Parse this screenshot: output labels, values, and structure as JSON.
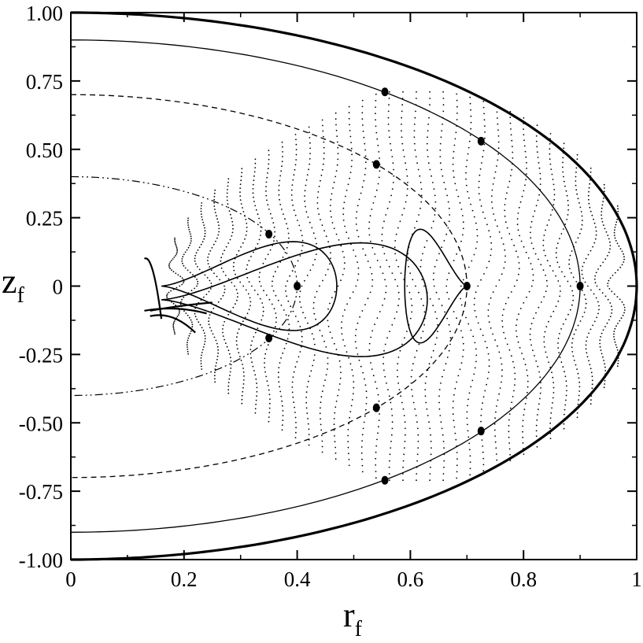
{
  "chart_data": {
    "type": "line",
    "xlabel": "r",
    "xlabel_subscript": "f",
    "ylabel": "z",
    "ylabel_subscript": "f",
    "xlim": [
      0,
      1
    ],
    "ylim": [
      -1,
      1
    ],
    "x_ticks": [
      0,
      0.2,
      0.4,
      0.6,
      0.8,
      1
    ],
    "x_tick_labels": [
      "0",
      "0.2",
      "0.4",
      "0.6",
      "0.8",
      "1"
    ],
    "y_ticks": [
      1,
      0.75,
      0.5,
      0.25,
      0,
      -0.25,
      -0.5,
      -0.75,
      -1
    ],
    "y_tick_labels": [
      "1.00",
      "0.75",
      "0.50",
      "0.25",
      "0",
      "-0.25",
      "-0.50",
      "-0.75",
      "-1.00"
    ],
    "grid": false,
    "legend": "none",
    "boundary_curves": [
      {
        "style": "thick-solid",
        "a": 1.0,
        "b": 1.0
      },
      {
        "style": "solid",
        "a": 0.9,
        "b": 0.9
      },
      {
        "style": "dashed",
        "a": 0.7,
        "b": 0.7
      },
      {
        "style": "dash-dot-dot",
        "a": 0.4,
        "b": 0.4
      }
    ],
    "marked_points": [
      {
        "x": 0.555,
        "y": 0.71
      },
      {
        "x": 0.725,
        "y": 0.53
      },
      {
        "x": 0.54,
        "y": 0.445
      },
      {
        "x": 0.35,
        "y": 0.19
      },
      {
        "x": 0.4,
        "y": 0.0
      },
      {
        "x": 0.7,
        "y": 0.0
      },
      {
        "x": 0.9,
        "y": 0.0
      },
      {
        "x": 0.35,
        "y": -0.19
      },
      {
        "x": 0.54,
        "y": -0.445
      },
      {
        "x": 0.725,
        "y": -0.53
      },
      {
        "x": 0.555,
        "y": -0.71
      }
    ],
    "dotted_region": {
      "x_range": [
        0.16,
        1.0
      ],
      "y_range": [
        -0.71,
        0.71
      ]
    }
  }
}
